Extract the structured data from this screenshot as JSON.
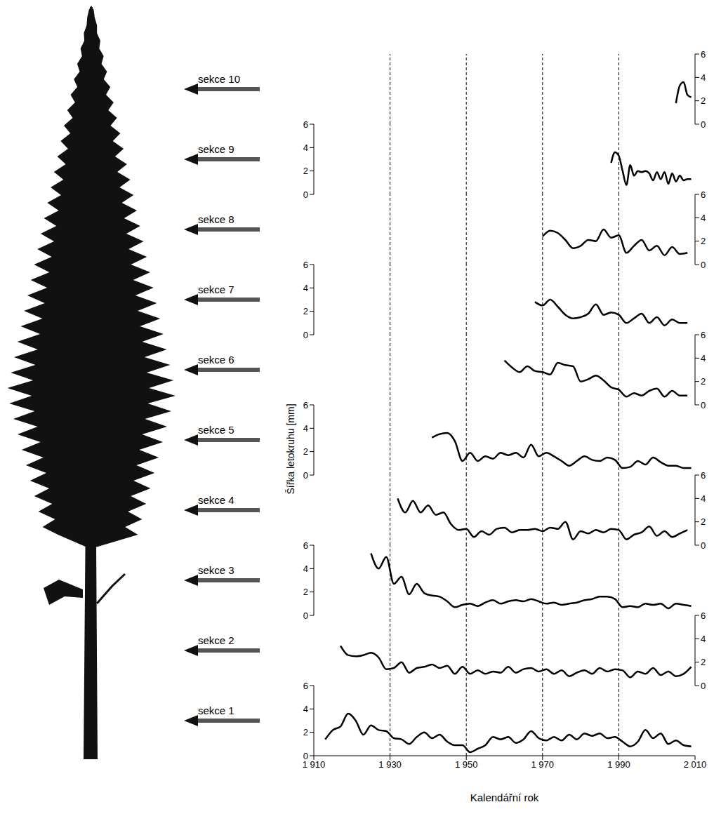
{
  "y_label": "Šířka letokruhu [mm]",
  "x_label": "Kalendářní rok",
  "reference_lines": [
    1930,
    1950,
    1970,
    1990
  ],
  "chart_data": [
    {
      "type": "line",
      "title": "sekce 1",
      "color": "#000000",
      "xlim": [
        1910,
        2010
      ],
      "ylim": [
        0,
        6
      ],
      "yticks": [
        0,
        2,
        4,
        6
      ],
      "xticks": [
        {
          "value": 1910,
          "label": "1 910"
        },
        {
          "value": 1930,
          "label": "1 930"
        },
        {
          "value": 1950,
          "label": "1 950"
        },
        {
          "value": 1970,
          "label": "1 970"
        },
        {
          "value": 1990,
          "label": "1 990"
        },
        {
          "value": 2010,
          "label": "2 010"
        }
      ],
      "tick_labels": true,
      "x": [
        1913,
        1915,
        1917,
        1919,
        1921,
        1923,
        1925,
        1927,
        1929,
        1931,
        1933,
        1935,
        1937,
        1939,
        1941,
        1943,
        1945,
        1947,
        1949,
        1951,
        1953,
        1955,
        1957,
        1959,
        1961,
        1963,
        1965,
        1967,
        1969,
        1971,
        1973,
        1975,
        1977,
        1979,
        1981,
        1983,
        1985,
        1987,
        1989,
        1991,
        1993,
        1995,
        1997,
        1999,
        2001,
        2003,
        2005,
        2007,
        2009
      ],
      "values": [
        1.4,
        2.2,
        2.5,
        3.6,
        3.0,
        1.8,
        2.6,
        2.2,
        2.1,
        1.5,
        1.4,
        1.0,
        1.6,
        2.0,
        1.5,
        1.8,
        1.2,
        0.9,
        0.9,
        0.3,
        0.6,
        0.9,
        1.6,
        1.4,
        1.6,
        1.1,
        1.4,
        2.1,
        1.5,
        1.3,
        1.6,
        1.3,
        1.8,
        1.4,
        1.9,
        1.7,
        1.9,
        1.5,
        1.6,
        1.2,
        0.8,
        1.2,
        2.2,
        1.5,
        1.9,
        1.0,
        1.3,
        0.9,
        0.8
      ]
    },
    {
      "type": "line",
      "title": "sekce 2",
      "color": "#000000",
      "xlim": [
        1910,
        2010
      ],
      "ylim": [
        0,
        6
      ],
      "yticks": [
        0,
        2,
        4,
        6
      ],
      "tick_labels": "y",
      "x": [
        1917,
        1919,
        1921,
        1923,
        1925,
        1927,
        1929,
        1931,
        1933,
        1935,
        1937,
        1939,
        1941,
        1943,
        1945,
        1947,
        1949,
        1951,
        1953,
        1955,
        1957,
        1959,
        1961,
        1963,
        1965,
        1967,
        1969,
        1971,
        1973,
        1975,
        1977,
        1979,
        1981,
        1983,
        1985,
        1987,
        1989,
        1991,
        1993,
        1995,
        1997,
        1999,
        2001,
        2003,
        2005,
        2007,
        2009
      ],
      "values": [
        3.4,
        2.6,
        2.5,
        2.6,
        2.8,
        2.4,
        1.4,
        1.5,
        2.0,
        1.1,
        1.5,
        1.6,
        1.8,
        1.5,
        1.7,
        1.0,
        1.6,
        1.0,
        1.3,
        1.0,
        1.2,
        1.1,
        1.6,
        1.1,
        1.4,
        1.5,
        1.2,
        1.4,
        1.0,
        1.3,
        0.8,
        1.1,
        1.3,
        1.0,
        1.5,
        1.2,
        1.4,
        1.3,
        0.7,
        1.2,
        1.0,
        1.5,
        0.9,
        1.2,
        0.8,
        1.0,
        1.6
      ]
    },
    {
      "type": "line",
      "title": "sekce 3",
      "color": "#000000",
      "xlim": [
        1910,
        2010
      ],
      "ylim": [
        0,
        6
      ],
      "yticks": [
        0,
        2,
        4,
        6
      ],
      "tick_labels": "y",
      "x": [
        1925,
        1927,
        1929,
        1931,
        1933,
        1935,
        1937,
        1939,
        1941,
        1943,
        1945,
        1947,
        1949,
        1951,
        1953,
        1955,
        1957,
        1959,
        1961,
        1963,
        1965,
        1967,
        1969,
        1971,
        1973,
        1975,
        1977,
        1979,
        1981,
        1983,
        1985,
        1987,
        1989,
        1991,
        1993,
        1995,
        1997,
        1999,
        2001,
        2003,
        2005,
        2007,
        2009
      ],
      "values": [
        5.3,
        4.0,
        5.0,
        2.7,
        3.3,
        1.8,
        2.7,
        1.9,
        1.7,
        1.6,
        1.2,
        0.7,
        0.9,
        1.0,
        0.8,
        1.1,
        1.3,
        1.0,
        1.2,
        1.3,
        1.2,
        1.4,
        1.2,
        1.0,
        1.1,
        0.9,
        1.0,
        1.1,
        1.3,
        1.4,
        1.6,
        1.6,
        1.4,
        0.7,
        0.8,
        0.7,
        1.0,
        0.9,
        1.0,
        0.6,
        1.0,
        0.9,
        0.8
      ]
    },
    {
      "type": "line",
      "title": "sekce 4",
      "color": "#000000",
      "xlim": [
        1910,
        2010
      ],
      "ylim": [
        0,
        6
      ],
      "yticks": [
        0,
        2,
        4,
        6
      ],
      "tick_labels": "y",
      "x": [
        1932,
        1934,
        1936,
        1938,
        1940,
        1942,
        1944,
        1946,
        1948,
        1950,
        1952,
        1954,
        1956,
        1958,
        1960,
        1962,
        1964,
        1966,
        1968,
        1970,
        1972,
        1974,
        1976,
        1978,
        1980,
        1982,
        1984,
        1986,
        1988,
        1990,
        1992,
        1994,
        1996,
        1998,
        2000,
        2002,
        2004,
        2006,
        2008
      ],
      "values": [
        4.0,
        2.8,
        3.8,
        2.8,
        3.4,
        2.6,
        2.8,
        1.8,
        1.3,
        1.4,
        0.7,
        1.2,
        0.9,
        1.4,
        1.5,
        1.1,
        1.3,
        1.3,
        1.4,
        1.2,
        1.5,
        1.4,
        2.0,
        0.5,
        1.2,
        1.0,
        1.3,
        1.1,
        1.4,
        1.3,
        0.5,
        0.9,
        1.1,
        1.6,
        0.8,
        1.2,
        0.7,
        1.0,
        1.3
      ]
    },
    {
      "type": "line",
      "title": "sekce 5",
      "color": "#000000",
      "xlim": [
        1910,
        2010
      ],
      "ylim": [
        0,
        6
      ],
      "yticks": [
        0,
        2,
        4,
        6
      ],
      "tick_labels": "y",
      "x": [
        1941,
        1943,
        1945,
        1947,
        1949,
        1951,
        1953,
        1955,
        1957,
        1959,
        1961,
        1963,
        1965,
        1967,
        1969,
        1971,
        1973,
        1975,
        1977,
        1979,
        1981,
        1983,
        1985,
        1987,
        1989,
        1991,
        1993,
        1995,
        1997,
        1999,
        2001,
        2003,
        2005,
        2007,
        2009
      ],
      "values": [
        3.2,
        3.5,
        3.6,
        2.9,
        1.2,
        1.9,
        1.2,
        1.6,
        1.4,
        1.9,
        1.7,
        1.9,
        1.5,
        2.6,
        1.6,
        1.9,
        1.6,
        1.2,
        0.8,
        1.2,
        1.6,
        1.3,
        1.2,
        1.5,
        1.3,
        0.6,
        0.7,
        1.2,
        0.9,
        1.5,
        1.1,
        0.8,
        0.8,
        0.6,
        0.6
      ]
    },
    {
      "type": "line",
      "title": "sekce 6",
      "color": "#000000",
      "xlim": [
        1910,
        2010
      ],
      "ylim": [
        0,
        6
      ],
      "yticks": [
        0,
        2,
        4,
        6
      ],
      "tick_labels": "y",
      "x": [
        1960,
        1962,
        1964,
        1966,
        1968,
        1970,
        1972,
        1974,
        1976,
        1978,
        1980,
        1982,
        1984,
        1986,
        1988,
        1990,
        1992,
        1994,
        1996,
        1998,
        2000,
        2002,
        2004,
        2006,
        2008
      ],
      "values": [
        3.8,
        3.2,
        2.8,
        3.3,
        2.9,
        2.8,
        2.6,
        3.6,
        3.4,
        3.3,
        2.0,
        2.2,
        2.5,
        2.1,
        1.5,
        1.3,
        0.7,
        1.0,
        0.8,
        1.2,
        1.4,
        0.7,
        1.2,
        0.8,
        0.8
      ]
    },
    {
      "type": "line",
      "title": "sekce 7",
      "color": "#000000",
      "xlim": [
        1910,
        2010
      ],
      "ylim": [
        0,
        6
      ],
      "yticks": [
        0,
        2,
        4,
        6
      ],
      "tick_labels": "y",
      "x": [
        1968,
        1970,
        1972,
        1974,
        1976,
        1978,
        1980,
        1982,
        1984,
        1986,
        1988,
        1990,
        1992,
        1994,
        1996,
        1998,
        2000,
        2002,
        2004,
        2006,
        2008
      ],
      "values": [
        2.8,
        2.5,
        3.0,
        2.4,
        1.7,
        1.4,
        1.5,
        1.8,
        2.6,
        1.7,
        1.9,
        1.7,
        1.0,
        1.4,
        1.8,
        1.0,
        1.5,
        0.8,
        1.3,
        1.0,
        1.0
      ]
    },
    {
      "type": "line",
      "title": "sekce 8",
      "color": "#000000",
      "xlim": [
        1910,
        2010
      ],
      "ylim": [
        0,
        6
      ],
      "yticks": [
        0,
        2,
        4,
        6
      ],
      "tick_labels": "y",
      "x": [
        1970,
        1972,
        1974,
        1976,
        1978,
        1980,
        1982,
        1984,
        1986,
        1988,
        1990,
        1992,
        1994,
        1996,
        1998,
        2000,
        2002,
        2004,
        2006,
        2008
      ],
      "values": [
        2.4,
        2.9,
        2.7,
        2.1,
        1.4,
        1.6,
        2.1,
        2.0,
        3.0,
        2.3,
        2.5,
        1.0,
        1.6,
        2.1,
        1.2,
        1.6,
        0.8,
        1.5,
        0.9,
        1.0
      ]
    },
    {
      "type": "line",
      "title": "sekce 9",
      "color": "#000000",
      "xlim": [
        1910,
        2010
      ],
      "ylim": [
        0,
        6
      ],
      "yticks": [
        0,
        2,
        4,
        6
      ],
      "tick_labels": "y",
      "x": [
        1988,
        1989,
        1990,
        1991,
        1992,
        1993,
        1994,
        1995,
        1996,
        1997,
        1998,
        1999,
        2000,
        2001,
        2002,
        2003,
        2004,
        2005,
        2006,
        2007,
        2008,
        2009
      ],
      "values": [
        2.7,
        3.6,
        3.3,
        2.0,
        0.8,
        2.5,
        1.6,
        2.0,
        1.9,
        2.0,
        1.8,
        1.2,
        1.9,
        1.3,
        1.9,
        0.9,
        1.8,
        1.1,
        1.6,
        1.2,
        1.3,
        1.3
      ]
    },
    {
      "type": "line",
      "title": "sekce 10",
      "color": "#000000",
      "xlim": [
        1910,
        2010
      ],
      "ylim": [
        0,
        6
      ],
      "yticks": [
        0,
        2,
        4,
        6
      ],
      "tick_labels": "y",
      "x": [
        2005,
        2006,
        2007,
        2008,
        2009
      ],
      "values": [
        1.8,
        3.3,
        3.6,
        2.5,
        2.3
      ]
    }
  ]
}
